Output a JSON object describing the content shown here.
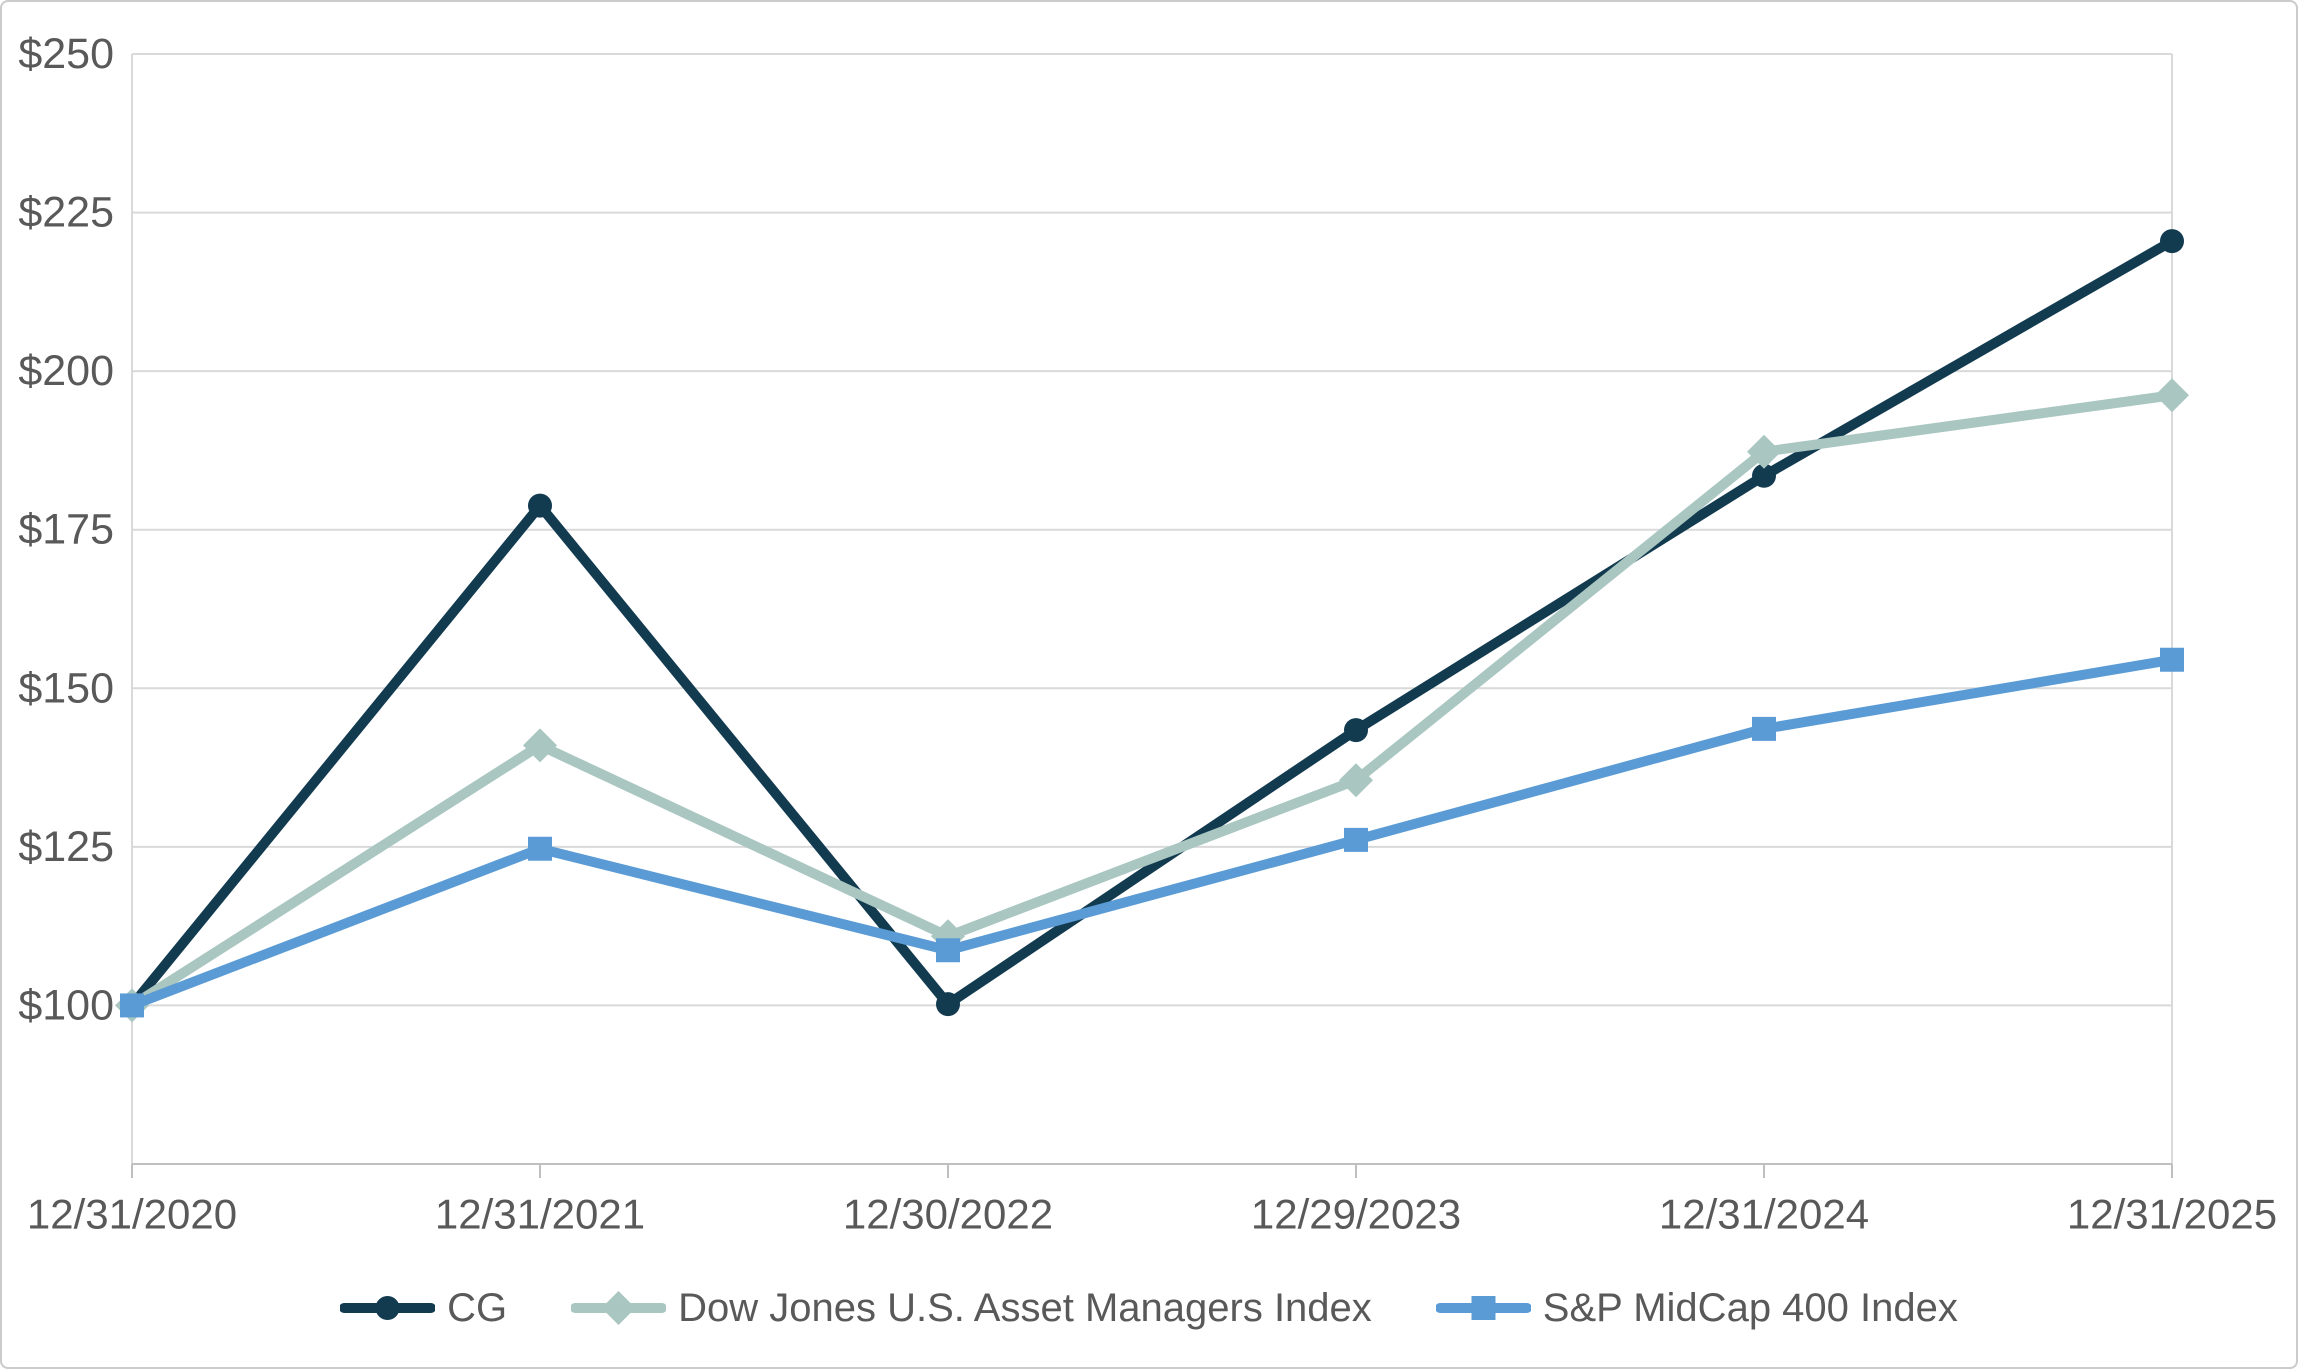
{
  "chart_data": {
    "type": "line",
    "title": "",
    "xlabel": "",
    "ylabel": "",
    "grid": true,
    "legend_position": "bottom",
    "categories": [
      "12/31/2020",
      "12/31/2021",
      "12/30/2022",
      "12/29/2023",
      "12/31/2024",
      "12/31/2025"
    ],
    "series": [
      {
        "name": "CG",
        "marker": "circle",
        "color": "#123B50",
        "values": [
          100,
          178.8,
          100.2,
          143.4,
          183.5,
          220.5
        ]
      },
      {
        "name": "Dow Jones U.S. Asset Managers Index",
        "marker": "diamond",
        "color": "#A9C6C1",
        "values": [
          100,
          141.0,
          110.9,
          135.5,
          187.3,
          196.2
        ]
      },
      {
        "name": "S&P MidCap 400 Index",
        "marker": "square",
        "color": "#5B9BD5",
        "values": [
          100,
          124.7,
          108.7,
          126.1,
          143.6,
          154.5
        ]
      }
    ],
    "y_axis": {
      "min": 75,
      "max": 250,
      "tick_step": 25,
      "tick_prefix": "$",
      "ticks": [
        {
          "value": 100,
          "label": "$100"
        },
        {
          "value": 125,
          "label": "$125"
        },
        {
          "value": 150,
          "label": "$150"
        },
        {
          "value": 175,
          "label": "$175"
        },
        {
          "value": 200,
          "label": "$200"
        },
        {
          "value": 225,
          "label": "$225"
        },
        {
          "value": 250,
          "label": "$250"
        }
      ]
    }
  },
  "style": {
    "grid_color": "#D9D9D9",
    "axis_color": "#BFBFBF",
    "text_color": "#595959",
    "background": "#FFFFFF",
    "border_color": "#CBCBCB"
  }
}
